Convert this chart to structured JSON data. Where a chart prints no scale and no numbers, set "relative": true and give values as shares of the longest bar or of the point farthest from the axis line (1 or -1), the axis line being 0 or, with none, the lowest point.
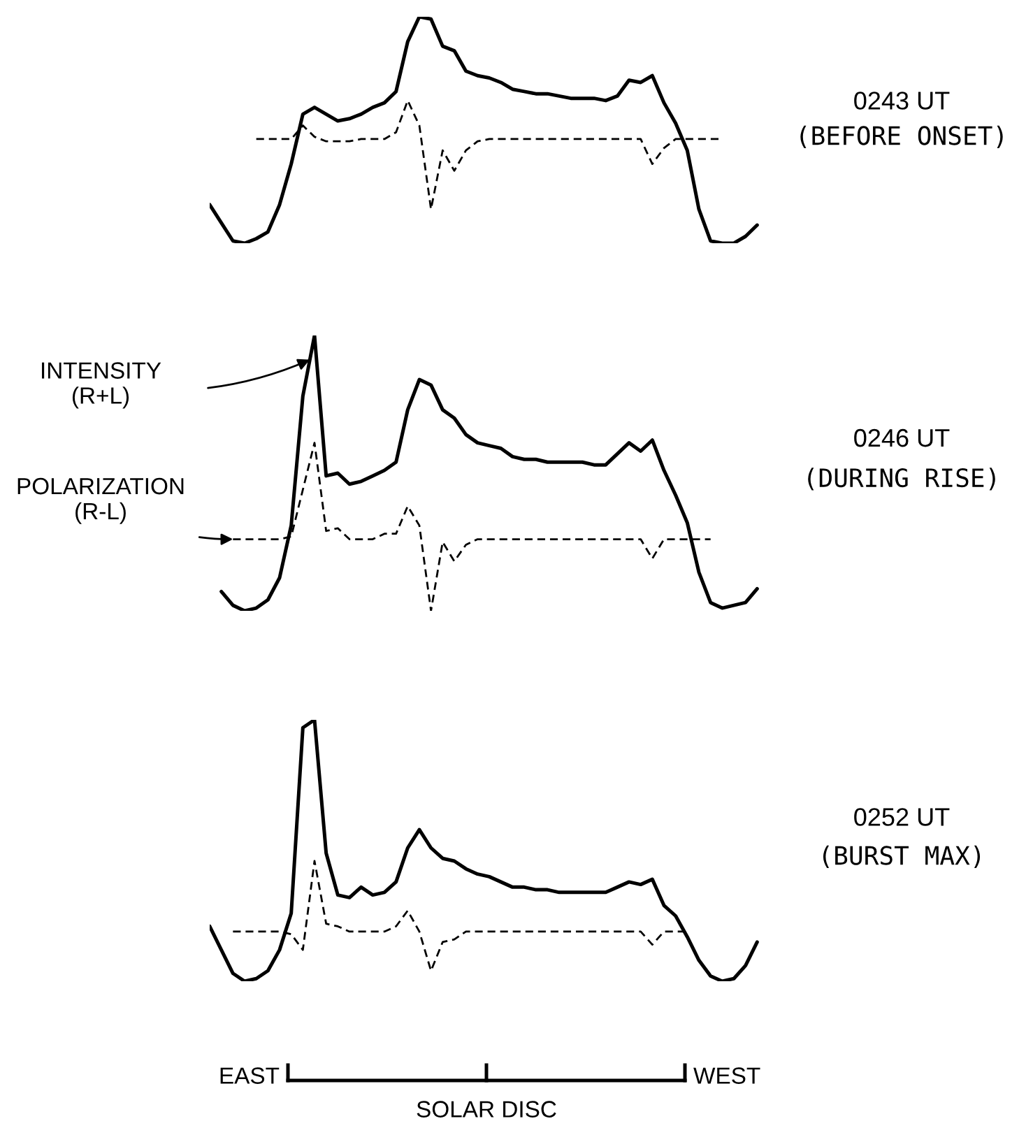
{
  "chart_data": [
    {
      "type": "line",
      "relative": true,
      "annotations": [
        "0243 UT",
        "(BEFORE ONSET)"
      ],
      "categories": [
        null,
        null,
        null,
        null,
        null,
        null,
        null,
        null,
        null,
        null,
        null,
        null,
        null,
        null,
        null,
        null,
        null,
        null,
        null,
        null,
        null,
        null,
        null,
        null,
        null,
        null,
        null,
        null,
        null,
        null,
        null,
        null,
        null,
        null,
        null,
        null,
        null,
        null,
        null,
        null,
        null,
        null,
        null,
        null,
        null,
        null,
        null,
        null,
        null
      ],
      "series": [
        {
          "color": "#000000",
          "line_style": "solid",
          "values": [
            0.17,
            0.09,
            0.01,
            0,
            0.02,
            0.05,
            0.17,
            0.35,
            0.57,
            0.6,
            0.57,
            0.54,
            0.55,
            0.57,
            0.6,
            0.62,
            0.67,
            0.89,
            1.0,
            0.99,
            0.87,
            0.85,
            0.76,
            0.74,
            0.73,
            0.71,
            0.68,
            0.67,
            0.66,
            0.66,
            0.65,
            0.64,
            0.64,
            0.64,
            0.63,
            0.65,
            0.72,
            0.71,
            0.74,
            0.62,
            0.53,
            0.41,
            0.15,
            0.01,
            0,
            0,
            0.03,
            0.08,
            null
          ]
        },
        {
          "color": "#000000",
          "line_style": "dashed",
          "values": [
            null,
            null,
            null,
            null,
            0.46,
            0.46,
            0.46,
            0.46,
            0.52,
            0.47,
            0.45,
            0.45,
            0.45,
            0.46,
            0.46,
            0.46,
            0.49,
            0.63,
            0.52,
            0.15,
            0.41,
            0.32,
            0.41,
            0.45,
            0.46,
            0.46,
            0.46,
            0.46,
            0.46,
            0.46,
            0.46,
            0.46,
            0.46,
            0.46,
            0.46,
            0.46,
            0.46,
            0.46,
            0.35,
            0.42,
            0.46,
            0.46,
            0.46,
            0.46,
            0.46,
            null,
            null,
            null,
            null
          ]
        }
      ]
    },
    {
      "type": "line",
      "relative": true,
      "annotations": [
        "0246 UT",
        "(DURING RISE)"
      ],
      "categories": [
        null,
        null,
        null,
        null,
        null,
        null,
        null,
        null,
        null,
        null,
        null,
        null,
        null,
        null,
        null,
        null,
        null,
        null,
        null,
        null,
        null,
        null,
        null,
        null,
        null,
        null,
        null,
        null,
        null,
        null,
        null,
        null,
        null,
        null,
        null,
        null,
        null,
        null,
        null,
        null,
        null,
        null,
        null,
        null,
        null,
        null,
        null,
        null,
        null
      ],
      "series": [
        {
          "name": "INTENSITY\n(R+L)",
          "color": "#000000",
          "line_style": "solid",
          "values": [
            null,
            0.07,
            0.02,
            0,
            0.01,
            0.04,
            0.12,
            0.31,
            0.78,
            1.0,
            0.49,
            0.5,
            0.46,
            0.47,
            0.49,
            0.51,
            0.54,
            0.73,
            0.84,
            0.82,
            0.73,
            0.7,
            0.64,
            0.61,
            0.6,
            0.59,
            0.56,
            0.55,
            0.55,
            0.54,
            0.54,
            0.54,
            0.54,
            0.53,
            0.53,
            0.57,
            0.61,
            0.58,
            0.62,
            0.51,
            0.42,
            0.32,
            0.14,
            0.03,
            0.01,
            0.02,
            0.03,
            0.08,
            null
          ]
        },
        {
          "name": "POLARIZATION\n(R-L)",
          "color": "#000000",
          "line_style": "dashed",
          "values": [
            null,
            null,
            0.26,
            0.26,
            0.26,
            0.26,
            0.26,
            0.27,
            0.44,
            0.61,
            0.29,
            0.3,
            0.26,
            0.26,
            0.26,
            0.28,
            0.28,
            0.38,
            0.31,
            0,
            0.25,
            0.18,
            0.24,
            0.26,
            0.26,
            0.26,
            0.26,
            0.26,
            0.26,
            0.26,
            0.26,
            0.26,
            0.26,
            0.26,
            0.26,
            0.26,
            0.26,
            0.26,
            0.19,
            0.26,
            0.26,
            0.26,
            0.26,
            0.26,
            null,
            null,
            null,
            null,
            null
          ]
        }
      ]
    },
    {
      "type": "line",
      "relative": true,
      "xlabel": "SOLAR DISC",
      "annotations": [
        "0252 UT",
        "(BURST MAX)",
        "EAST",
        "WEST"
      ],
      "categories": [
        null,
        null,
        null,
        null,
        null,
        null,
        null,
        null,
        null,
        null,
        null,
        null,
        null,
        null,
        null,
        null,
        null,
        null,
        null,
        null,
        null,
        null,
        null,
        null,
        null,
        null,
        null,
        null,
        null,
        null,
        null,
        null,
        null,
        null,
        null,
        null,
        null,
        null,
        null,
        null,
        null,
        null,
        null,
        null,
        null,
        null,
        null,
        null,
        null
      ],
      "series": [
        {
          "color": "#000000",
          "line_style": "solid",
          "values": [
            0.21,
            0.12,
            0.03,
            0,
            0.01,
            0.04,
            0.12,
            0.26,
            0.97,
            1.0,
            0.49,
            0.33,
            0.32,
            0.36,
            0.33,
            0.34,
            0.38,
            0.51,
            0.58,
            0.51,
            0.47,
            0.46,
            0.43,
            0.41,
            0.4,
            0.38,
            0.36,
            0.36,
            0.35,
            0.35,
            0.34,
            0.34,
            0.34,
            0.34,
            0.34,
            0.36,
            0.38,
            0.37,
            0.39,
            0.29,
            0.25,
            0.17,
            0.08,
            0.02,
            0,
            0.01,
            0.06,
            0.15,
            null
          ]
        },
        {
          "color": "#000000",
          "line_style": "dashed",
          "values": [
            null,
            null,
            0.19,
            0.19,
            0.19,
            0.19,
            0.19,
            0.18,
            0.12,
            0.46,
            0.22,
            0.21,
            0.19,
            0.19,
            0.19,
            0.19,
            0.21,
            0.27,
            0.19,
            0.04,
            0.15,
            0.16,
            0.19,
            0.19,
            0.19,
            0.19,
            0.19,
            0.19,
            0.19,
            0.19,
            0.19,
            0.19,
            0.19,
            0.19,
            0.19,
            0.19,
            0.19,
            0.19,
            0.14,
            0.19,
            0.19,
            0.19,
            null,
            null,
            null,
            null,
            null,
            null,
            null
          ]
        }
      ]
    }
  ]
}
